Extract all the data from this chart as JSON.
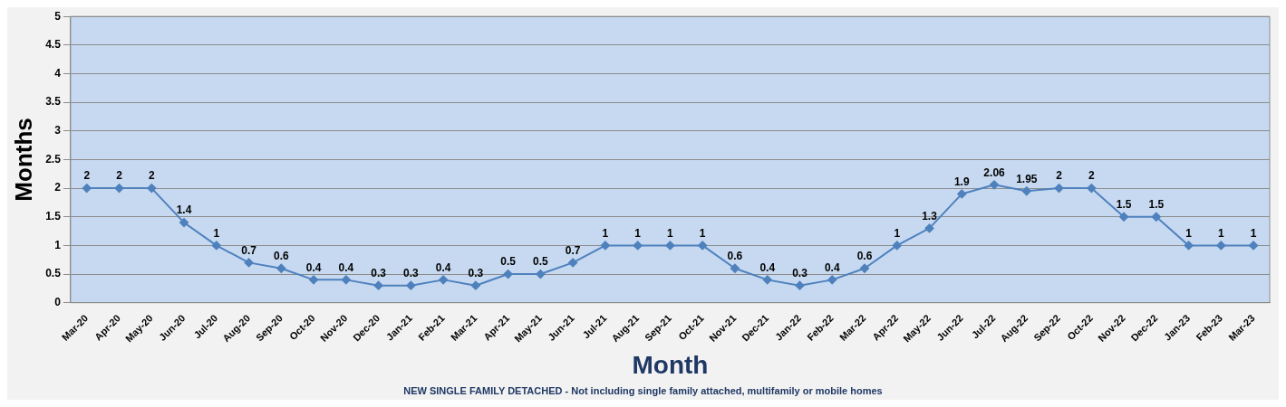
{
  "chart_data": {
    "type": "line",
    "xlabel": "Month",
    "ylabel": "Months",
    "annotations": [
      "NEW SINGLE FAMILY DETACHED - Not including single family attached, multifamily or mobile homes"
    ],
    "categories": [
      "Mar-20",
      "Apr-20",
      "May-20",
      "Jun-20",
      "Jul-20",
      "Aug-20",
      "Sep-20",
      "Oct-20",
      "Nov-20",
      "Dec-20",
      "Jan-21",
      "Feb-21",
      "Mar-21",
      "Apr-21",
      "May-21",
      "Jun-21",
      "Jul-21",
      "Aug-21",
      "Sep-21",
      "Oct-21",
      "Nov-21",
      "Dec-21",
      "Jan-22",
      "Feb-22",
      "Mar-22",
      "Apr-22",
      "May-22",
      "Jun-22",
      "Jul-22",
      "Aug-22",
      "Sep-22",
      "Oct-22",
      "Nov-22",
      "Dec-22",
      "Jan-23",
      "Feb-23",
      "Mar-23"
    ],
    "series": [
      {
        "color": "#4f81bd",
        "values": [
          2,
          2,
          2,
          1.4,
          1,
          0.7,
          0.6,
          0.4,
          0.4,
          0.3,
          0.3,
          0.4,
          0.3,
          0.5,
          0.5,
          0.7,
          1,
          1,
          1,
          1,
          0.6,
          0.4,
          0.3,
          0.4,
          0.6,
          1,
          1.3,
          1.9,
          2.06,
          1.95,
          2,
          2,
          1.5,
          1.5,
          1,
          1,
          1
        ]
      }
    ],
    "ylim": [
      0,
      5
    ],
    "yticks": [
      0,
      0.5,
      1,
      1.5,
      2,
      2.5,
      3,
      3.5,
      4,
      4.5,
      5
    ],
    "grid": "y",
    "marker": "diamond",
    "line_style": "solid",
    "data_labels": true,
    "legend": false
  }
}
